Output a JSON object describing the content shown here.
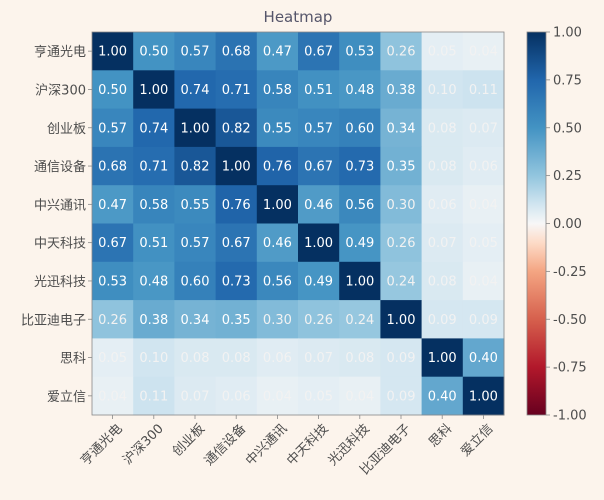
{
  "chart_data": {
    "type": "heatmap",
    "title": "Heatmap",
    "labels": [
      "亨通光电",
      "沪深300",
      "创业板",
      "通信设备",
      "中兴通讯",
      "中天科技",
      "光迅科技",
      "比亚迪电子",
      "思科",
      "爱立信"
    ],
    "matrix": [
      [
        1.0,
        0.5,
        0.57,
        0.68,
        0.47,
        0.67,
        0.53,
        0.26,
        0.05,
        0.04
      ],
      [
        0.5,
        1.0,
        0.74,
        0.71,
        0.58,
        0.51,
        0.48,
        0.38,
        0.1,
        0.11
      ],
      [
        0.57,
        0.74,
        1.0,
        0.82,
        0.55,
        0.57,
        0.6,
        0.34,
        0.08,
        0.07
      ],
      [
        0.68,
        0.71,
        0.82,
        1.0,
        0.76,
        0.67,
        0.73,
        0.35,
        0.08,
        0.06
      ],
      [
        0.47,
        0.58,
        0.55,
        0.76,
        1.0,
        0.46,
        0.56,
        0.3,
        0.06,
        0.04
      ],
      [
        0.67,
        0.51,
        0.57,
        0.67,
        0.46,
        1.0,
        0.49,
        0.26,
        0.07,
        0.05
      ],
      [
        0.53,
        0.48,
        0.6,
        0.73,
        0.56,
        0.49,
        1.0,
        0.24,
        0.08,
        0.04
      ],
      [
        0.26,
        0.38,
        0.34,
        0.35,
        0.3,
        0.26,
        0.24,
        1.0,
        0.09,
        0.09
      ],
      [
        0.05,
        0.1,
        0.08,
        0.08,
        0.06,
        0.07,
        0.08,
        0.09,
        1.0,
        0.4
      ],
      [
        0.04,
        0.11,
        0.07,
        0.06,
        0.04,
        0.05,
        0.04,
        0.09,
        0.4,
        1.0
      ]
    ],
    "value_format": "2 decimals",
    "colormap": "RdBu",
    "vmin": -1.0,
    "vmax": 1.0,
    "colorbar_ticks": [
      "1.00",
      "0.75",
      "0.50",
      "0.25",
      "0.00",
      "-0.25",
      "-0.50",
      "-0.75",
      "-1.00"
    ],
    "x_tick_rotation": "45 degrees",
    "grid": false
  }
}
